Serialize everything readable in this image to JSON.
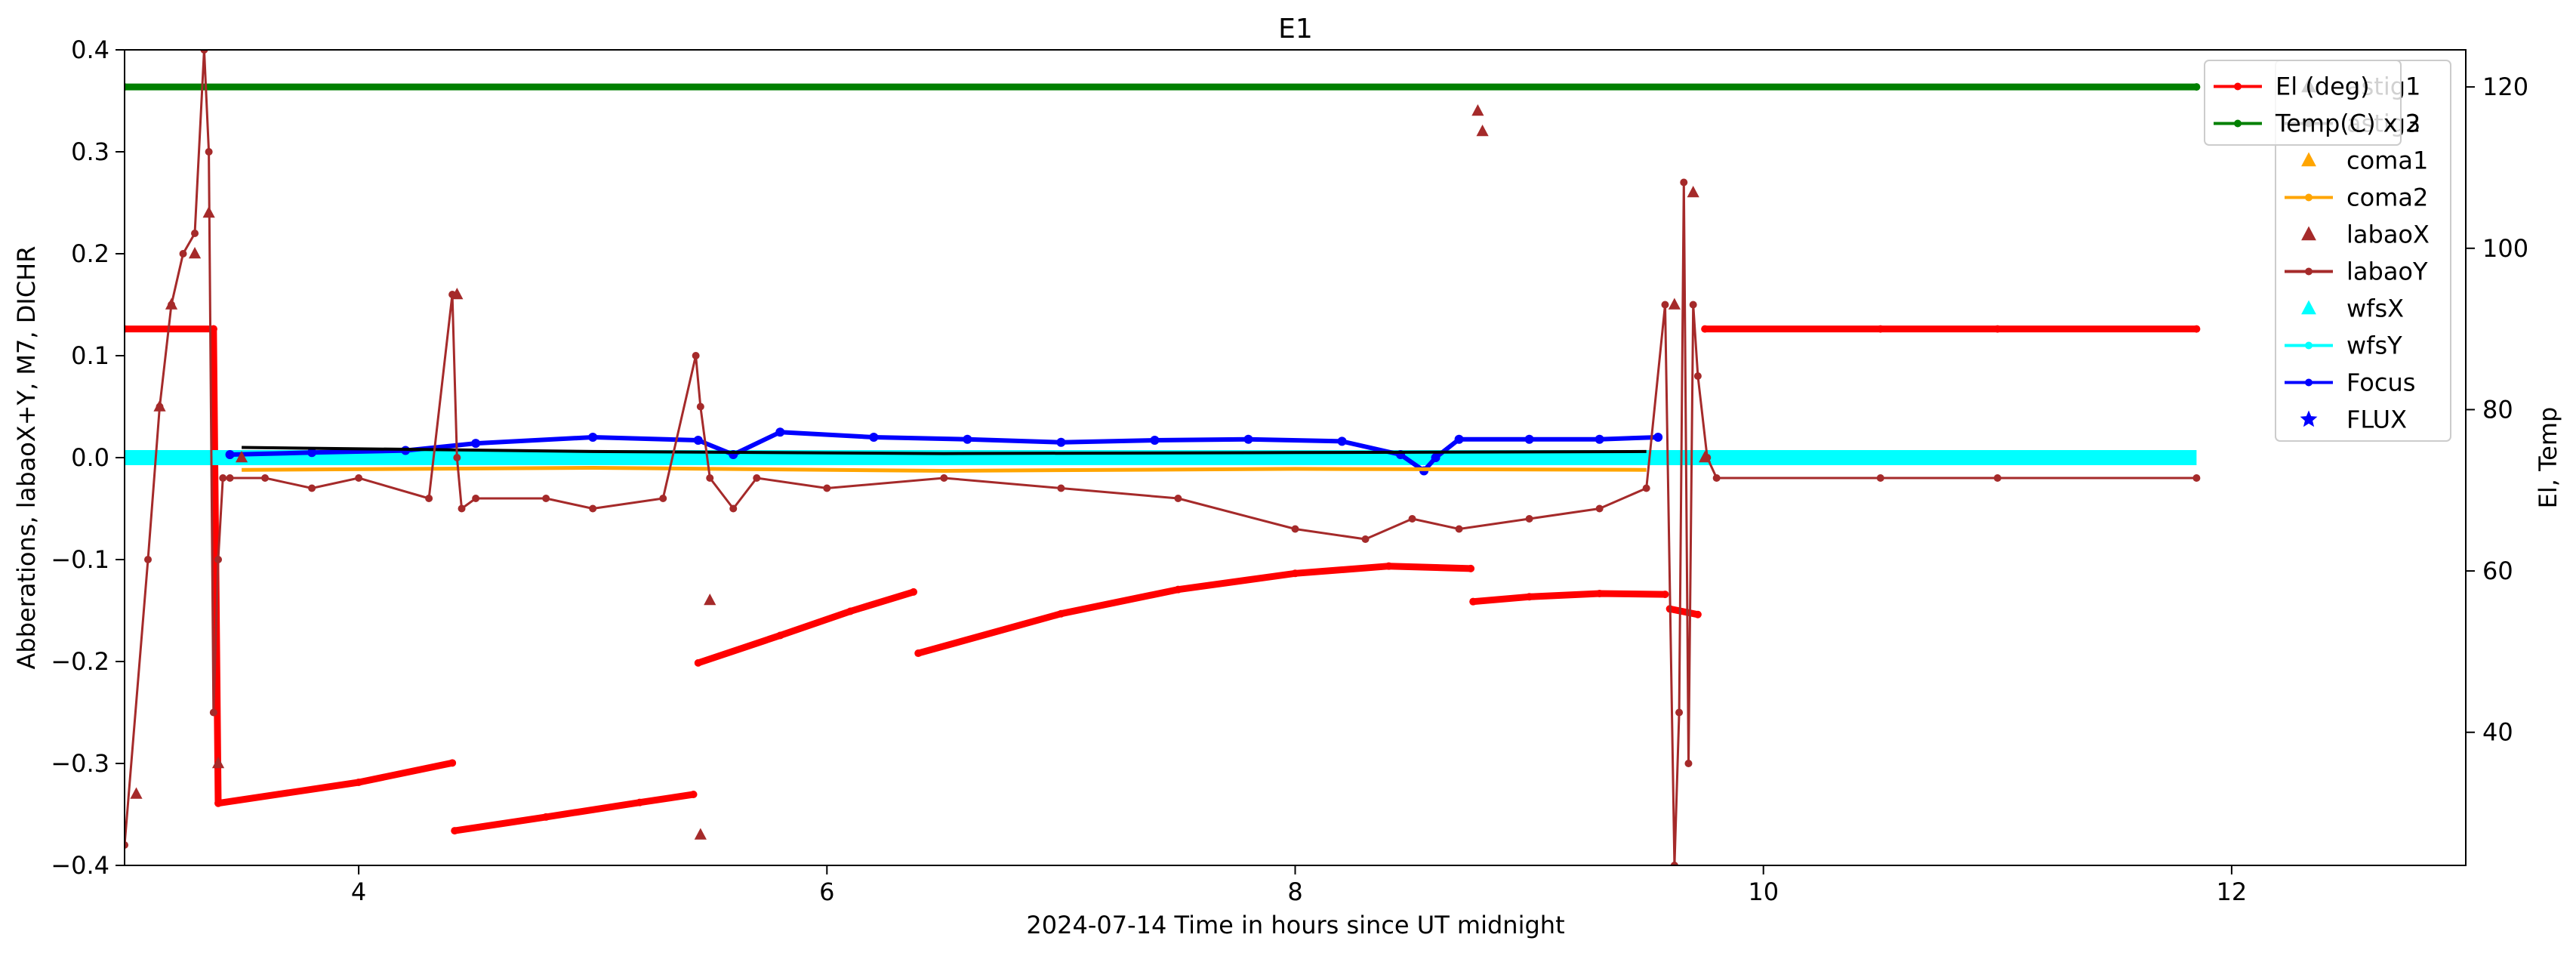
{
  "chart_data": {
    "type": "line",
    "title": "E1",
    "xlabel": "2024-07-14  Time in hours since UT midnight",
    "ylabel_left": "Abberations, labaoX+Y, M7, DICHR",
    "ylabel_right": "El, Temp",
    "xlim": [
      3.0,
      13.0
    ],
    "ylim_left": [
      -0.4,
      0.4
    ],
    "ylim_right": [
      23.5,
      124.6
    ],
    "x_ticks": [
      4,
      6,
      8,
      10,
      12
    ],
    "x_tick_labels": [
      "4",
      "6",
      "8",
      "10",
      "12"
    ],
    "y_ticks_left": [
      -0.4,
      -0.3,
      -0.2,
      -0.1,
      0.0,
      0.1,
      0.2,
      0.3,
      0.4
    ],
    "y_tick_labels_left": [
      "−0.4",
      "−0.3",
      "−0.2",
      "−0.1",
      "0.0",
      "0.1",
      "0.2",
      "0.3",
      "0.4"
    ],
    "y_ticks_right": [
      40,
      60,
      80,
      100,
      120
    ],
    "y_tick_labels_right": [
      "40",
      "60",
      "80",
      "100",
      "120"
    ],
    "grid": false,
    "legend_left_axis": {
      "placement": "right",
      "entries": [
        {
          "name": "astig1",
          "color": "#000000",
          "marker": "triangle"
        },
        {
          "name": "astig2",
          "color": "#000000",
          "marker": "line-dot"
        },
        {
          "name": "coma1",
          "color": "#FFA500",
          "marker": "triangle"
        },
        {
          "name": "coma2",
          "color": "#FFA500",
          "marker": "line-dot"
        },
        {
          "name": "labaoX",
          "color": "#A52A2A",
          "marker": "triangle"
        },
        {
          "name": "labaoY",
          "color": "#A52A2A",
          "marker": "line-dot"
        },
        {
          "name": "wfsX",
          "color": "#00FFFF",
          "marker": "triangle"
        },
        {
          "name": "wfsY",
          "color": "#00FFFF",
          "marker": "line-dot"
        },
        {
          "name": "Focus",
          "color": "#0000FF",
          "marker": "line-dot"
        },
        {
          "name": "FLUX",
          "color": "#0000FF",
          "marker": "star"
        }
      ]
    },
    "legend_right_axis": {
      "placement": "top-right",
      "entries": [
        {
          "name": "El (deg)",
          "color": "#FF0000",
          "marker": "line-dot"
        },
        {
          "name": "Temp(C) x 3",
          "color": "#008000",
          "marker": "line-dot"
        }
      ]
    },
    "series": [
      {
        "name": "Temp(C) x 3",
        "axis": "right",
        "color": "#008000",
        "x": [
          3.0,
          11.85
        ],
        "y": [
          120.0,
          120.0
        ]
      },
      {
        "name": "El (deg)",
        "axis": "right",
        "color": "#FF0000",
        "segments": [
          {
            "x": [
              3.0,
              3.38
            ],
            "y": [
              90.0,
              90.0
            ]
          },
          {
            "x": [
              3.38,
              3.4,
              4.0,
              4.4
            ],
            "y": [
              90.0,
              31.2,
              33.8,
              36.2
            ]
          },
          {
            "x": [
              4.41,
              4.8,
              5.2,
              5.43
            ],
            "y": [
              27.8,
              29.5,
              31.3,
              32.3
            ]
          },
          {
            "x": [
              5.45,
              5.8,
              6.1,
              6.37
            ],
            "y": [
              48.6,
              52.0,
              55.0,
              57.4
            ]
          },
          {
            "x": [
              6.39,
              7.0,
              7.5,
              8.0,
              8.4,
              8.75
            ],
            "y": [
              49.8,
              54.7,
              57.7,
              59.7,
              60.6,
              60.3
            ]
          },
          {
            "x": [
              8.76,
              9.0,
              9.3,
              9.58
            ],
            "y": [
              56.2,
              56.8,
              57.2,
              57.1
            ]
          },
          {
            "x": [
              9.6,
              9.72
            ],
            "y": [
              55.3,
              54.6
            ]
          },
          {
            "x": [
              9.75,
              10.5,
              11.0,
              11.85
            ],
            "y": [
              90.0,
              90.0,
              90.0,
              90.0
            ]
          }
        ]
      },
      {
        "name": "wfsX",
        "axis": "left",
        "color": "#00FFFF",
        "x": [
          3.0,
          11.85
        ],
        "y": [
          0.0,
          0.0
        ]
      },
      {
        "name": "Focus",
        "axis": "left",
        "color": "#0000FF",
        "x": [
          3.45,
          3.8,
          4.2,
          4.5,
          5.0,
          5.45,
          5.6,
          5.8,
          6.2,
          6.6,
          7.0,
          7.4,
          7.8,
          8.2,
          8.45,
          8.55,
          8.6,
          8.7,
          9.0,
          9.3,
          9.55
        ],
        "y": [
          0.003,
          0.005,
          0.007,
          0.014,
          0.02,
          0.017,
          0.003,
          0.025,
          0.02,
          0.018,
          0.015,
          0.017,
          0.018,
          0.016,
          0.003,
          -0.013,
          0.0,
          0.018,
          0.018,
          0.018,
          0.02
        ]
      },
      {
        "name": "astig2",
        "axis": "left",
        "color": "#000000",
        "x": [
          3.5,
          5.0,
          6.5,
          8.0,
          9.5
        ],
        "y": [
          0.01,
          0.006,
          0.004,
          0.005,
          0.006
        ]
      },
      {
        "name": "coma2",
        "axis": "left",
        "color": "#FFA500",
        "x": [
          3.5,
          5.0,
          6.5,
          8.0,
          9.5
        ],
        "y": [
          -0.012,
          -0.01,
          -0.013,
          -0.011,
          -0.012
        ]
      },
      {
        "name": "labaoY",
        "axis": "left",
        "color": "#A52A2A",
        "x": [
          3.0,
          3.1,
          3.15,
          3.2,
          3.25,
          3.3,
          3.34,
          3.36,
          3.38,
          3.4,
          3.42,
          3.45,
          3.6,
          3.8,
          4.0,
          4.3,
          4.4,
          4.42,
          4.44,
          4.5,
          4.8,
          5.0,
          5.3,
          5.44,
          5.46,
          5.5,
          5.6,
          5.7,
          6.0,
          6.5,
          7.0,
          7.5,
          8.0,
          8.3,
          8.5,
          8.7,
          9.0,
          9.3,
          9.5,
          9.58,
          9.62,
          9.64,
          9.66,
          9.68,
          9.7,
          9.72,
          9.76,
          9.8,
          10.5,
          11.0,
          11.85
        ],
        "y": [
          -0.38,
          -0.1,
          0.05,
          0.15,
          0.2,
          0.22,
          0.4,
          0.3,
          -0.25,
          -0.1,
          -0.02,
          -0.02,
          -0.02,
          -0.03,
          -0.02,
          -0.04,
          0.16,
          0.0,
          -0.05,
          -0.04,
          -0.04,
          -0.05,
          -0.04,
          0.1,
          0.05,
          -0.02,
          -0.05,
          -0.02,
          -0.03,
          -0.02,
          -0.03,
          -0.04,
          -0.07,
          -0.08,
          -0.06,
          -0.07,
          -0.06,
          -0.05,
          -0.03,
          0.15,
          -0.4,
          -0.25,
          0.27,
          -0.3,
          0.15,
          0.08,
          0.0,
          -0.02,
          -0.02,
          -0.02,
          -0.02
        ]
      },
      {
        "name": "labaoX",
        "axis": "left",
        "color": "#A52A2A",
        "marker": "triangle",
        "x": [
          3.05,
          3.15,
          3.2,
          3.3,
          3.36,
          3.4,
          3.5,
          4.42,
          5.46,
          5.5,
          8.78,
          8.8,
          9.62,
          9.7,
          9.75
        ],
        "y": [
          -0.33,
          0.05,
          0.15,
          0.2,
          0.24,
          -0.3,
          0.0,
          0.16,
          -0.37,
          -0.14,
          0.34,
          0.32,
          0.15,
          0.26,
          0.0
        ]
      }
    ]
  }
}
